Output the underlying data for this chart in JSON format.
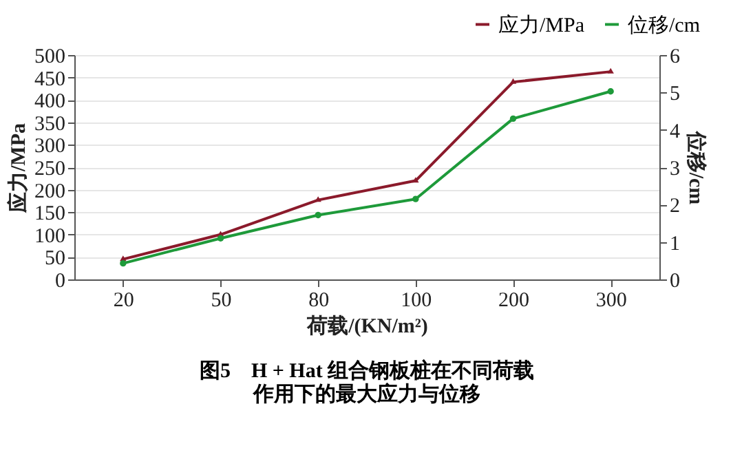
{
  "chart_data": {
    "type": "line",
    "categories": [
      "20",
      "50",
      "80",
      "100",
      "200",
      "300"
    ],
    "xlabel": "荷载/(KN/m²)",
    "ylabel": "应力/MPa",
    "y2label": "位移/cm",
    "series": [
      {
        "name": "应力/MPa",
        "color": "#8b1a2b",
        "marker": "triangle",
        "values": [
          45,
          100,
          177,
          220,
          440,
          463
        ]
      },
      {
        "name": "位移/cm",
        "color": "#1e9a3a",
        "marker": "circle",
        "axis": "y2",
        "values": [
          0.43,
          1.1,
          1.72,
          2.15,
          4.3,
          5.03
        ]
      }
    ],
    "ylim": [
      0,
      500
    ],
    "yticks": [
      0,
      50,
      100,
      150,
      200,
      250,
      300,
      350,
      400,
      450,
      500
    ],
    "y2lim": [
      0,
      6
    ],
    "y2ticks": [
      0,
      1,
      2,
      3,
      4,
      5,
      6
    ],
    "grid": "y",
    "legend": "top right",
    "line_style": "solid",
    "annotations": [
      "图5　H + Hat 组合钢板桩在不同荷载",
      "作用下的最大应力与位移"
    ]
  }
}
